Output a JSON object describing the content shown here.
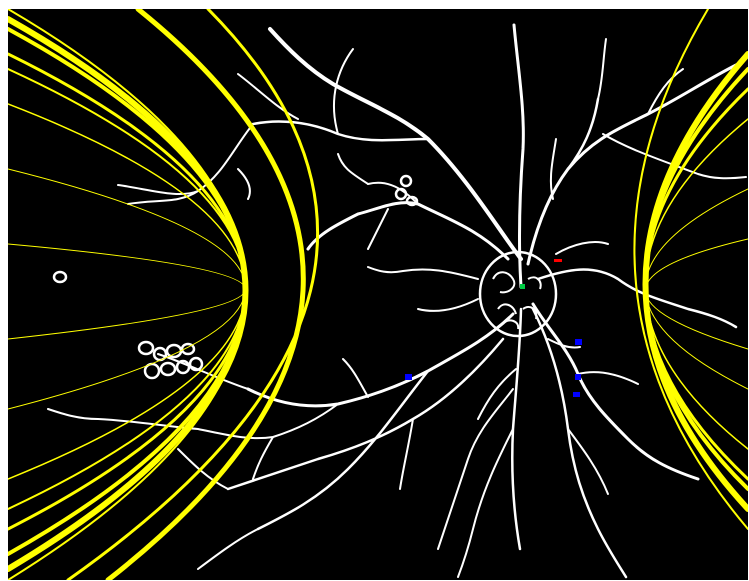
{
  "image": {
    "background_color": "#000000",
    "vessel_color": "#ffffff",
    "curve_color": "#ffff00",
    "marker_colors": {
      "center": "#00cc44",
      "blue": "#0000ff",
      "red": "#ff0000"
    },
    "icons": {
      "vessel_tree": "vessel-tree",
      "optic_disc": "optic-disc",
      "fitted_curves": "parabola-curves",
      "lesion_rings": "ring-lesions"
    }
  }
}
